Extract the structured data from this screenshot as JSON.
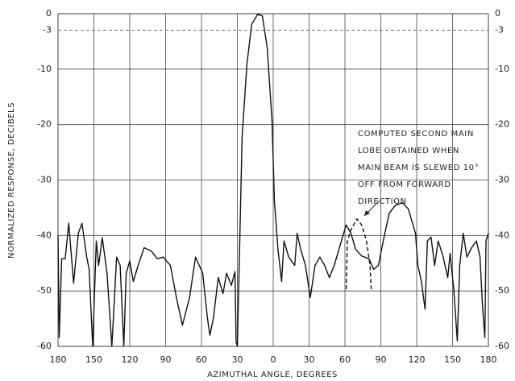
{
  "chart_data": {
    "type": "line",
    "x_label": "AZIMUTHAL ANGLE, DEGREES",
    "y_label": "NORMALIZED RESPONSE, DECIBELS",
    "xlim": [
      -180,
      180
    ],
    "ylim": [
      -60,
      0
    ],
    "xticks": [
      {
        "value": -180,
        "label": "180"
      },
      {
        "value": -150,
        "label": "150"
      },
      {
        "value": -120,
        "label": "120"
      },
      {
        "value": -90,
        "label": "90"
      },
      {
        "value": -60,
        "label": "60"
      },
      {
        "value": -30,
        "label": "30"
      },
      0,
      30,
      60,
      90,
      120,
      {
        "value": 150,
        "label": "150"
      },
      180
    ],
    "yticks": [
      0,
      -3,
      -10,
      -20,
      -30,
      -40,
      -50,
      -60
    ],
    "grid": true,
    "reference_line": {
      "y": -3,
      "style": "dashed"
    },
    "annotation": [
      "COMPUTED SECOND MAIN",
      "LOBE OBTAINED WHEN",
      "MAIN BEAM IS SLEWED 10°",
      "OFF FROM FORWARD",
      "DIRECTION"
    ],
    "series": [
      {
        "color": "#111111",
        "style": "solid",
        "x": [
          -180,
          -179,
          -177,
          -174,
          -171,
          -167,
          -163,
          -160,
          -156,
          -154,
          -151,
          -148,
          -146,
          -143,
          -139,
          -135,
          -131,
          -128,
          -125,
          -123,
          -120,
          -117,
          -113,
          -108,
          -102,
          -97,
          -92,
          -86,
          -81,
          -76,
          -70,
          -65,
          -59,
          -55,
          -53,
          -50,
          -46,
          -42,
          -39,
          -35,
          -32,
          -31,
          -30,
          -28,
          -26,
          -22,
          -18,
          -13,
          -9,
          -5,
          -1,
          1,
          4,
          7,
          9,
          13,
          18,
          20,
          23,
          27,
          31,
          35,
          39,
          43,
          47,
          51,
          57,
          61,
          65,
          69,
          74,
          80,
          84,
          88,
          92,
          97,
          102,
          108,
          113,
          119,
          121,
          124,
          127,
          129,
          132,
          135,
          138,
          142,
          146,
          148,
          151,
          154,
          156,
          159,
          162,
          166,
          170,
          173,
          175,
          177,
          178,
          180
        ],
        "values": [
          -40,
          -58.4,
          -44.2,
          -44.2,
          -37.8,
          -48.6,
          -39.6,
          -37.8,
          -43.9,
          -46.1,
          -60,
          -41,
          -45.4,
          -40.4,
          -46.8,
          -60,
          -43.9,
          -45.4,
          -60,
          -46.8,
          -44.6,
          -48.3,
          -45.4,
          -42.2,
          -42.8,
          -44.2,
          -43.9,
          -45.4,
          -51.2,
          -56.2,
          -51.2,
          -43.9,
          -46.8,
          -54.9,
          -58,
          -54.9,
          -47.6,
          -50.5,
          -46.8,
          -49,
          -46.5,
          -59.2,
          -60,
          -41,
          -22.2,
          -9.1,
          -1.9,
          -0.1,
          -0.4,
          -6.2,
          -19.3,
          -33.8,
          -42.5,
          -48.3,
          -41,
          -43.9,
          -45.4,
          -39.6,
          -42.5,
          -45.4,
          -51.2,
          -45.4,
          -43.9,
          -45.4,
          -47.6,
          -45.4,
          -41,
          -38.1,
          -39.6,
          -42.5,
          -43.7,
          -44.2,
          -46.1,
          -45.4,
          -41,
          -36,
          -34.6,
          -34.1,
          -35.2,
          -39.6,
          -45.4,
          -48.3,
          -53.3,
          -41,
          -40.3,
          -45.4,
          -41,
          -43.7,
          -47.6,
          -43.2,
          -49.7,
          -59,
          -45.4,
          -39.6,
          -43.9,
          -42.2,
          -41,
          -43.9,
          -52.6,
          -58.4,
          -41,
          -39.6
        ]
      },
      {
        "color": "#111111",
        "style": "dashed",
        "x": [
          61,
          62,
          65,
          70,
          74,
          78,
          81,
          82
        ],
        "values": [
          -49.7,
          -41,
          -39,
          -37,
          -38.1,
          -41,
          -45.4,
          -49.7
        ]
      }
    ]
  }
}
